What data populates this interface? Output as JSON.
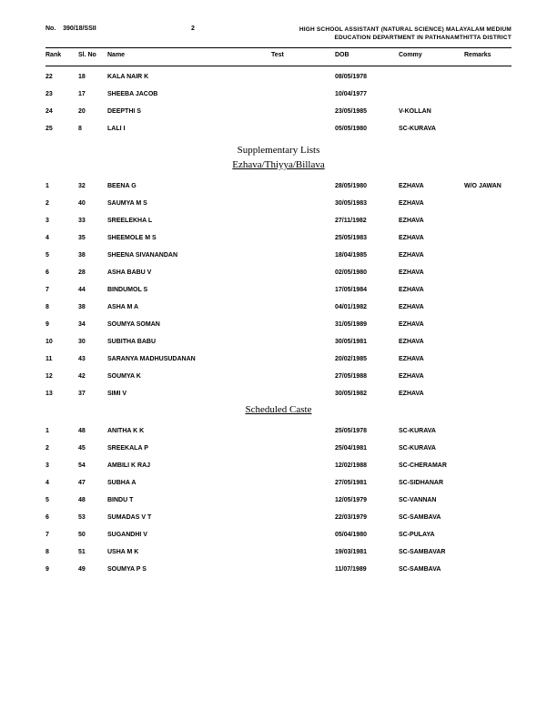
{
  "header": {
    "no_label": "No.",
    "no_value": "390/18/SSII",
    "page_number": "2",
    "title_line1": "HIGH SCHOOL ASSISTANT (NATURAL SCIENCE) MALAYALAM MEDIUM",
    "title_line2": "EDUCATION DEPARTMENT IN PATHANAMTHITTA DISTRICT"
  },
  "columns": {
    "rank": "Rank",
    "slno": "Sl. No",
    "name": "Name",
    "test": "Test",
    "dob": "DOB",
    "commy": "Commy",
    "remarks": "Remarks"
  },
  "main_rows": [
    {
      "rank": "22",
      "slno": "18",
      "name": "KALA NAIR K",
      "dob": "08/05/1978",
      "commy": "",
      "remarks": ""
    },
    {
      "rank": "23",
      "slno": "17",
      "name": "SHEEBA JACOB",
      "dob": "10/04/1977",
      "commy": "",
      "remarks": ""
    },
    {
      "rank": "24",
      "slno": "20",
      "name": "DEEPTHI S",
      "dob": "23/05/1985",
      "commy": "V-KOLLAN",
      "remarks": ""
    },
    {
      "rank": "25",
      "slno": "8",
      "name": "LALI I",
      "dob": "05/05/1980",
      "commy": "SC-KURAVA",
      "remarks": ""
    }
  ],
  "sections": [
    {
      "title": "Supplementary Lists",
      "subtitle": "Ezhava/Thiyya/Billava",
      "rows": [
        {
          "rank": "1",
          "slno": "32",
          "name": "BEENA G",
          "dob": "28/05/1980",
          "commy": "EZHAVA",
          "remarks": "W/O JAWAN"
        },
        {
          "rank": "2",
          "slno": "40",
          "name": "SAUMYA M S",
          "dob": "30/05/1983",
          "commy": "EZHAVA",
          "remarks": ""
        },
        {
          "rank": "3",
          "slno": "33",
          "name": "SREELEKHA L",
          "dob": "27/11/1982",
          "commy": "EZHAVA",
          "remarks": ""
        },
        {
          "rank": "4",
          "slno": "35",
          "name": "SHEEMOLE M S",
          "dob": "25/05/1983",
          "commy": "EZHAVA",
          "remarks": ""
        },
        {
          "rank": "5",
          "slno": "38",
          "name": "SHEENA SIVANANDAN",
          "dob": "18/04/1985",
          "commy": "EZHAVA",
          "remarks": ""
        },
        {
          "rank": "6",
          "slno": "28",
          "name": "ASHA BABU V",
          "dob": "02/05/1980",
          "commy": "EZHAVA",
          "remarks": ""
        },
        {
          "rank": "7",
          "slno": "44",
          "name": "BINDUMOL S",
          "dob": "17/05/1984",
          "commy": "EZHAVA",
          "remarks": ""
        },
        {
          "rank": "8",
          "slno": "38",
          "name": "ASHA M A",
          "dob": "04/01/1982",
          "commy": "EZHAVA",
          "remarks": ""
        },
        {
          "rank": "9",
          "slno": "34",
          "name": "SOUMYA SOMAN",
          "dob": "31/05/1989",
          "commy": "EZHAVA",
          "remarks": ""
        },
        {
          "rank": "10",
          "slno": "30",
          "name": "SUBITHA BABU",
          "dob": "30/05/1981",
          "commy": "EZHAVA",
          "remarks": ""
        },
        {
          "rank": "11",
          "slno": "43",
          "name": "SARANYA MADHUSUDANAN",
          "dob": "20/02/1985",
          "commy": "EZHAVA",
          "remarks": ""
        },
        {
          "rank": "12",
          "slno": "42",
          "name": "SOUMYA K",
          "dob": "27/05/1988",
          "commy": "EZHAVA",
          "remarks": ""
        },
        {
          "rank": "13",
          "slno": "37",
          "name": "SIMI V",
          "dob": "30/05/1982",
          "commy": "EZHAVA",
          "remarks": ""
        }
      ]
    },
    {
      "title": "",
      "subtitle": "Scheduled Caste",
      "rows": [
        {
          "rank": "1",
          "slno": "48",
          "name": "ANITHA K K",
          "dob": "25/05/1978",
          "commy": "SC-KURAVA",
          "remarks": ""
        },
        {
          "rank": "2",
          "slno": "45",
          "name": "SREEKALA P",
          "dob": "25/04/1981",
          "commy": "SC-KURAVA",
          "remarks": ""
        },
        {
          "rank": "3",
          "slno": "54",
          "name": "AMBILI K RAJ",
          "dob": "12/02/1988",
          "commy": "SC-CHERAMAR",
          "remarks": ""
        },
        {
          "rank": "4",
          "slno": "47",
          "name": "SUBHA A",
          "dob": "27/05/1981",
          "commy": "SC-SIDHANAR",
          "remarks": ""
        },
        {
          "rank": "5",
          "slno": "48",
          "name": "BINDU T",
          "dob": "12/05/1979",
          "commy": "SC-VANNAN",
          "remarks": ""
        },
        {
          "rank": "6",
          "slno": "53",
          "name": "SUMADAS V T",
          "dob": "22/03/1979",
          "commy": "SC-SAMBAVA",
          "remarks": ""
        },
        {
          "rank": "7",
          "slno": "50",
          "name": "SUGANDHI V",
          "dob": "05/04/1980",
          "commy": "SC-PULAYA",
          "remarks": ""
        },
        {
          "rank": "8",
          "slno": "51",
          "name": "USHA M K",
          "dob": "19/03/1981",
          "commy": "SC-SAMBAVAR",
          "remarks": ""
        },
        {
          "rank": "9",
          "slno": "49",
          "name": "SOUMYA P S",
          "dob": "11/07/1989",
          "commy": "SC-SAMBAVA",
          "remarks": ""
        }
      ]
    }
  ]
}
